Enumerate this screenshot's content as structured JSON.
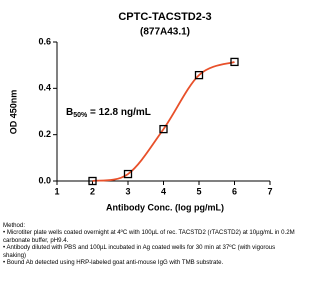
{
  "chart_data": {
    "type": "line",
    "title": "CPTC-TACSTD2-3",
    "subtitle": "(877A43.1)",
    "x_label": "Antibody Conc. (log pg/mL)",
    "y_label": "OD 450nm",
    "annotation": {
      "main": "B",
      "sub": "50%",
      "rest": " = 12.8 ng/mL"
    },
    "x": [
      2,
      3,
      4,
      5,
      6
    ],
    "series": [
      {
        "color": "#e8502a",
        "values": [
          0.0,
          0.03,
          0.224,
          0.457,
          0.514
        ]
      }
    ],
    "xlim": [
      1,
      7
    ],
    "xticks": [
      1,
      2,
      3,
      4,
      5,
      6,
      7
    ],
    "ylim": [
      0,
      0.6
    ],
    "yticks": [
      {
        "value": 0,
        "label": "0.0"
      },
      0.2,
      0.4,
      0.6
    ]
  },
  "method": {
    "title": "Method:",
    "items": [
      "• Microtiter plate wells coated overnight at 4ºC  with 100µL of rec. TACSTD2 (rTACSTD2) at 10µg/mL in 0.2M carbonate buffer, pH9.4.",
      "• Antibody diluted with PBS and 100µL incubated in Ag coated wells for 30 min at 37ºC (with vigorous shaking)",
      "• Bound Ab detected using HRP-labeled goat anti-mouse IgG with TMB substrate."
    ]
  }
}
